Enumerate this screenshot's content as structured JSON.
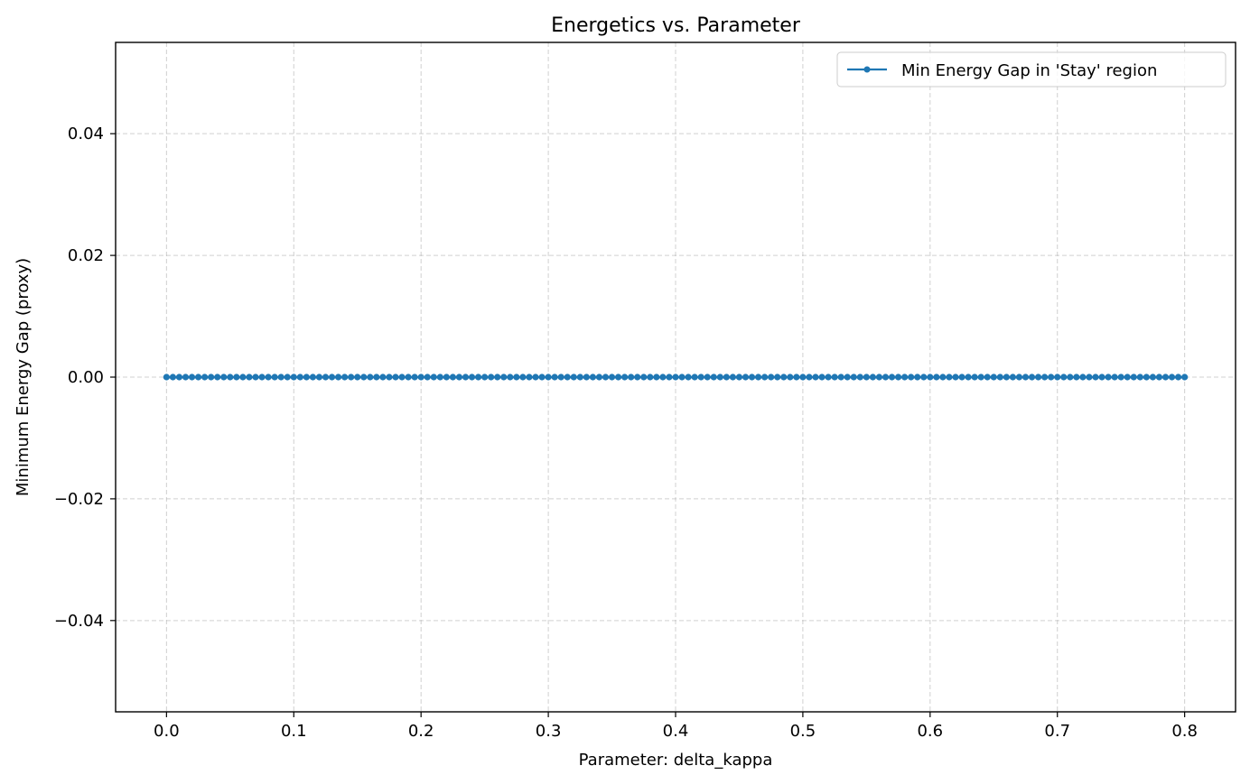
{
  "chart_data": {
    "type": "line",
    "title": "Energetics vs. Parameter",
    "xlabel": "Parameter: delta_kappa",
    "ylabel": "Minimum Energy Gap (proxy)",
    "xlim": [
      -0.04,
      0.84
    ],
    "ylim": [
      -0.055,
      0.055
    ],
    "x_ticks": [
      0.0,
      0.1,
      0.2,
      0.3,
      0.4,
      0.5,
      0.6,
      0.7,
      0.8
    ],
    "x_tick_labels": [
      "0.0",
      "0.1",
      "0.2",
      "0.3",
      "0.4",
      "0.5",
      "0.6",
      "0.7",
      "0.8"
    ],
    "y_ticks": [
      -0.04,
      -0.02,
      0.0,
      0.02,
      0.04
    ],
    "y_tick_labels": [
      "−0.04",
      "−0.02",
      "0.00",
      "0.02",
      "0.04"
    ],
    "grid": true,
    "legend_position": "top-right",
    "series": [
      {
        "name": "Min Energy Gap in 'Stay' region",
        "color": "#1f77b4",
        "marker": "circle",
        "x_start": 0.0,
        "x_end": 0.8,
        "n_points": 161,
        "y": 0.0
      }
    ]
  }
}
